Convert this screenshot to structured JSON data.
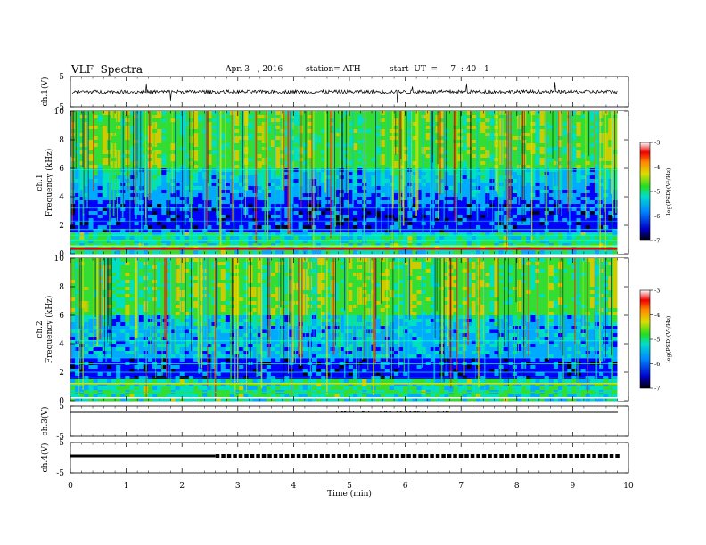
{
  "header": {
    "title": "VLF  Spectra",
    "date": "Apr. 3   , 2016",
    "station": "station= ATH",
    "start": "start  UT  =     7  : 40 : 1"
  },
  "colors": {
    "spectrum": [
      "#000020",
      "#0000ff",
      "#00aaff",
      "#00e0c0",
      "#33dd33",
      "#cccc00",
      "#ff8800",
      "#ee0000",
      "#ffffff"
    ]
  },
  "chart_data": [
    {
      "type": "line",
      "panel": "ch1-waveform",
      "ylabel": "ch.1(V)",
      "ylim": [
        -5,
        5
      ],
      "yticks": [
        "5",
        "-5"
      ],
      "baseline": 0,
      "xlim": [
        0,
        10
      ]
    },
    {
      "type": "heatmap",
      "panel": "ch1-spectrogram",
      "ylabel_line1": "ch.1",
      "ylabel_line2": "Frequency  (kHz)",
      "ylim": [
        0,
        10
      ],
      "yticks": [
        "0",
        "2",
        "4",
        "6",
        "8",
        "10"
      ],
      "xlim": [
        0,
        9.8
      ],
      "colorbar": {
        "label": "log(PSD)(V²/Hz)",
        "range": [
          -7,
          -3
        ],
        "ticks": [
          "-3",
          "-4",
          "-5",
          "-6",
          "-7"
        ]
      }
    },
    {
      "type": "heatmap",
      "panel": "ch2-spectrogram",
      "ylabel_line1": "ch.2",
      "ylabel_line2": "Frequency  (kHz)",
      "ylim": [
        0,
        10
      ],
      "yticks": [
        "0",
        "2",
        "4",
        "6",
        "8",
        "10"
      ],
      "xlim": [
        0,
        9.8
      ],
      "colorbar": {
        "label": "log(PSD)(V²/Hz)",
        "range": [
          -7,
          -3
        ],
        "ticks": [
          "-3",
          "-4",
          "-5",
          "-6",
          "-7"
        ]
      }
    },
    {
      "type": "line",
      "panel": "ch3-waveform",
      "ylabel": "ch.3(V)",
      "ylim": [
        -5,
        5
      ],
      "yticks": [
        "5",
        "-5"
      ],
      "baseline": 0
    },
    {
      "type": "line",
      "panel": "ch4-waveform",
      "ylabel": "ch.4(V)",
      "ylim": [
        -5,
        5
      ],
      "yticks": [
        "5",
        "-5"
      ],
      "baseline": 0
    }
  ],
  "xaxis": {
    "label": "Time  (min)",
    "ticks": [
      "0",
      "1",
      "2",
      "3",
      "4",
      "5",
      "6",
      "7",
      "8",
      "9",
      "10"
    ],
    "range": [
      0,
      10
    ]
  }
}
